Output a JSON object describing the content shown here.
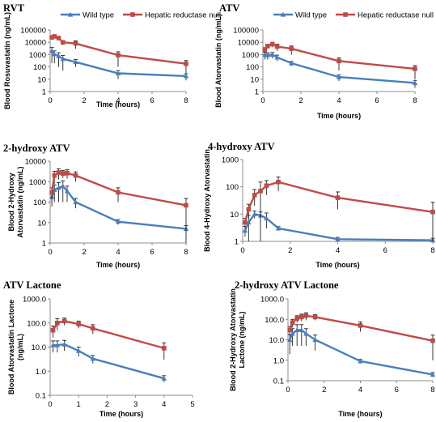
{
  "colors": {
    "wild_type": "#4a7ebb",
    "hepatic_reductase_null": "#be4b48"
  },
  "chart_data": [
    {
      "type": "line",
      "title": "RVT",
      "xlabel": "Time (hours)",
      "ylabel": "Blood Rosuvastatin (ng/mL)",
      "yscale": "log",
      "xlim": [
        0,
        8
      ],
      "ylim": [
        1,
        100000
      ],
      "xticks": [
        0,
        2,
        4,
        6,
        8
      ],
      "yticks": [
        1,
        10,
        100,
        1000,
        10000,
        100000
      ],
      "ytick_labels": [
        "1",
        "10",
        "100",
        "1000",
        "10000",
        "100000"
      ],
      "legend": [
        "Wild type",
        "Hepatic reductase null"
      ],
      "series": [
        {
          "name": "Wild type",
          "x": [
            0.1,
            0.25,
            0.5,
            0.75,
            1.5,
            4,
            8
          ],
          "y": [
            2000,
            1100,
            750,
            450,
            250,
            30,
            18
          ],
          "err": [
            1800,
            900,
            650,
            400,
            150,
            20,
            10
          ]
        },
        {
          "name": "Hepatic reductase null",
          "x": [
            0.1,
            0.25,
            0.5,
            0.75,
            1.5,
            4,
            8
          ],
          "y": [
            25000,
            30000,
            22000,
            10000,
            8000,
            900,
            180
          ],
          "err": [
            8000,
            8000,
            6000,
            4000,
            5000,
            800,
            150
          ]
        }
      ]
    },
    {
      "type": "line",
      "title": "ATV",
      "xlabel": "Time (hours)",
      "ylabel": "Blood Atorvastatin (ng/mL)",
      "yscale": "log",
      "xlim": [
        0,
        8
      ],
      "ylim": [
        1,
        100000
      ],
      "xticks": [
        0,
        2,
        4,
        6,
        8
      ],
      "yticks": [
        1,
        10,
        100,
        1000,
        10000,
        100000
      ],
      "ytick_labels": [
        "1",
        "10",
        "100",
        "1000",
        "10000",
        "100000"
      ],
      "legend": [
        "Wild type",
        "Hepatic reductase null"
      ],
      "series": [
        {
          "name": "Wild type",
          "x": [
            0.1,
            0.25,
            0.5,
            0.75,
            1.5,
            4,
            8
          ],
          "y": [
            1000,
            900,
            1000,
            600,
            200,
            15,
            5
          ],
          "err": [
            600,
            500,
            500,
            300,
            80,
            8,
            3
          ]
        },
        {
          "name": "Hepatic reductase null",
          "x": [
            0.1,
            0.25,
            0.5,
            0.75,
            1.5,
            4,
            8
          ],
          "y": [
            2500,
            5000,
            7000,
            4500,
            3000,
            300,
            70
          ],
          "err": [
            1200,
            2000,
            3000,
            2500,
            2000,
            250,
            60
          ]
        }
      ]
    },
    {
      "type": "line",
      "title": "2-hydroxy ATV",
      "xlabel": "Time (hours)",
      "ylabel": "Blood 2-Hydroxy Atorvastatin (ng/mL)",
      "ylabel_lines": [
        "Blood 2-Hydroxy",
        "Atorvastatin (ng/mL)"
      ],
      "yscale": "log",
      "xlim": [
        0,
        8
      ],
      "ylim": [
        1,
        10000
      ],
      "xticks": [
        0,
        2,
        4,
        6,
        8
      ],
      "yticks": [
        1,
        10,
        100,
        1000,
        10000
      ],
      "ytick_labels": [
        "1",
        "10",
        "100",
        "1000",
        "10000"
      ],
      "series": [
        {
          "name": "Wild type",
          "x": [
            0.1,
            0.25,
            0.5,
            0.75,
            1,
            1.5,
            4,
            8
          ],
          "y": [
            180,
            400,
            500,
            600,
            350,
            100,
            11,
            5
          ],
          "err": [
            120,
            300,
            400,
            500,
            250,
            50,
            3,
            2
          ]
        },
        {
          "name": "Hepatic reductase null",
          "x": [
            0.1,
            0.25,
            0.5,
            0.75,
            1,
            1.5,
            4,
            8
          ],
          "y": [
            300,
            2000,
            2800,
            2500,
            2600,
            2000,
            300,
            70
          ],
          "err": [
            200,
            1200,
            1500,
            1000,
            1200,
            1000,
            200,
            80
          ]
        }
      ]
    },
    {
      "type": "line",
      "title": "4-hydroxy ATV",
      "xlabel": "Time (hours)",
      "ylabel": "Blood 4-Hydroxy Atorvastatin",
      "yscale": "log",
      "xlim": [
        0,
        8
      ],
      "ylim": [
        1,
        1000
      ],
      "xticks": [
        0,
        2,
        4,
        6,
        8
      ],
      "yticks": [
        1,
        10,
        100,
        1000
      ],
      "ytick_labels": [
        "1",
        "10",
        "100",
        "1000"
      ],
      "series": [
        {
          "name": "Wild type",
          "x": [
            0.1,
            0.25,
            0.5,
            0.75,
            1,
            1.5,
            4,
            8
          ],
          "y": [
            2.5,
            5,
            10,
            9,
            7,
            3,
            1.2,
            1.1
          ],
          "err": [
            1,
            4,
            3,
            3,
            4,
            0.5,
            0.2,
            0.2
          ]
        },
        {
          "name": "Hepatic reductase null",
          "x": [
            0.1,
            0.25,
            0.5,
            0.75,
            1,
            1.5,
            4,
            8
          ],
          "y": [
            5,
            15,
            50,
            70,
            110,
            150,
            40,
            12
          ],
          "err": [
            2,
            8,
            30,
            80,
            60,
            80,
            25,
            15
          ]
        }
      ]
    },
    {
      "type": "line",
      "title": "ATV Lactone",
      "xlabel": "Time (hours)",
      "ylabel": "Blood Atorvastatin Lactone (ng/mL)",
      "ylabel_lines": [
        "Blood Atorvastatin Lactone",
        "(ng/mL)"
      ],
      "yscale": "log",
      "xlim": [
        0,
        5
      ],
      "ylim": [
        0.1,
        1000
      ],
      "xticks": [
        0,
        1,
        2,
        3,
        4,
        5
      ],
      "yticks": [
        0.1,
        1,
        10,
        100,
        1000
      ],
      "ytick_labels": [
        "0.1",
        "1.0",
        "10.0",
        "100.0",
        "1000.0"
      ],
      "series": [
        {
          "name": "Wild type",
          "x": [
            0.1,
            0.25,
            0.5,
            1,
            1.5,
            4
          ],
          "y": [
            12,
            12,
            13,
            7,
            3.3,
            0.5
          ],
          "err": [
            6,
            6,
            6,
            3,
            1.2,
            0.15
          ]
        },
        {
          "name": "Hepatic reductase null",
          "x": [
            0.1,
            0.25,
            0.5,
            1,
            1.5,
            4
          ],
          "y": [
            50,
            100,
            120,
            90,
            60,
            9
          ],
          "err": [
            25,
            50,
            40,
            30,
            25,
            6
          ]
        }
      ]
    },
    {
      "type": "line",
      "title": "2-hydroxy ATV Lactone",
      "xlabel": "Time (hours)",
      "ylabel": "Blood 2-Hydroxy Atorvastatin Lactone (ng/mL)",
      "ylabel_lines": [
        "Blood 2-Hydroxy Atorvastatin",
        "Lactone (ng/mL)"
      ],
      "yscale": "log",
      "xlim": [
        0,
        8
      ],
      "ylim": [
        0.1,
        1000
      ],
      "xticks": [
        0,
        2,
        4,
        6,
        8
      ],
      "yticks": [
        0.1,
        1,
        10,
        100,
        1000
      ],
      "ytick_labels": [
        "0.1",
        "1.0",
        "10.0",
        "100.0",
        "1000.0"
      ],
      "series": [
        {
          "name": "Wild type",
          "x": [
            0.1,
            0.25,
            0.5,
            0.75,
            1,
            1.5,
            4,
            8
          ],
          "y": [
            10,
            20,
            30,
            30,
            20,
            10,
            0.9,
            0.2
          ],
          "err": [
            8,
            15,
            25,
            25,
            15,
            7,
            0.2,
            0.05
          ]
        },
        {
          "name": "Hepatic reductase null",
          "x": [
            0.1,
            0.25,
            0.5,
            0.75,
            1,
            1.5,
            4,
            8
          ],
          "y": [
            30,
            70,
            110,
            130,
            150,
            130,
            50,
            9
          ],
          "err": [
            15,
            30,
            40,
            50,
            60,
            40,
            25,
            8
          ]
        }
      ]
    }
  ]
}
